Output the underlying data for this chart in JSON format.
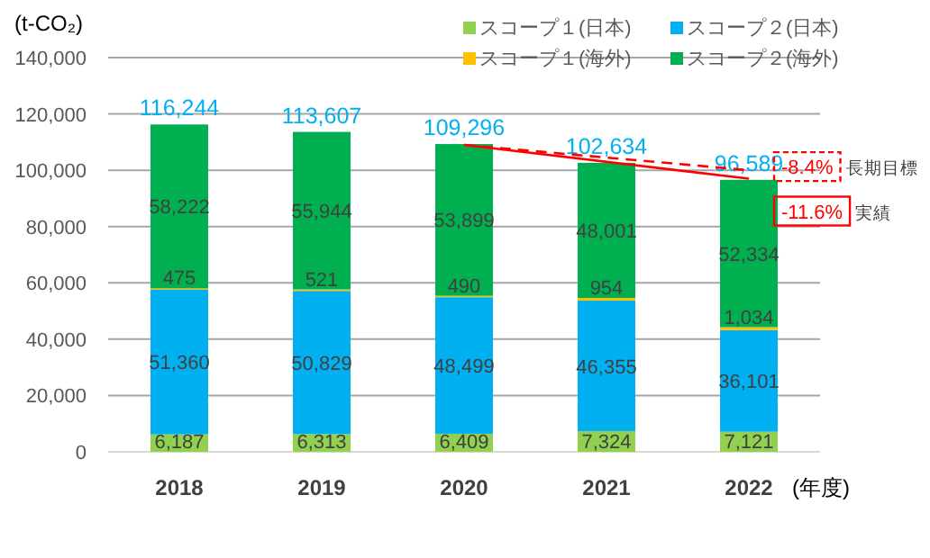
{
  "chart_data": {
    "type": "bar",
    "stacked": true,
    "ylabel": "(t-CO₂)",
    "xlabel": "(年度)",
    "categories": [
      "2018",
      "2019",
      "2020",
      "2021",
      "2022"
    ],
    "series": [
      {
        "name": "スコープ１(日本)",
        "color": "#92d050",
        "values": [
          6187,
          6313,
          6409,
          7324,
          7121
        ],
        "value_labels": [
          "6,187",
          "6,313",
          "6,409",
          "7,324",
          "7,121"
        ]
      },
      {
        "name": "スコープ２(日本)",
        "color": "#00b0f0",
        "values": [
          51360,
          50829,
          48499,
          46355,
          36101
        ],
        "value_labels": [
          "51,360",
          "50,829",
          "48,499",
          "46,355",
          "36,101"
        ]
      },
      {
        "name": "スコープ１(海外)",
        "color": "#ffc000",
        "values": [
          475,
          521,
          490,
          954,
          1034
        ],
        "value_labels": [
          "475",
          "521",
          "490",
          "954",
          "1,034"
        ]
      },
      {
        "name": "スコープ２(海外)",
        "color": "#00b050",
        "values": [
          58222,
          55944,
          53899,
          48001,
          52334
        ],
        "value_labels": [
          "58,222",
          "55,944",
          "53,899",
          "48,001",
          "52,334"
        ]
      },
      {
        "name": "長期目標",
        "type": "line",
        "line_style": "dashed",
        "color": "#ff0000",
        "values": [
          null,
          null,
          109000,
          null,
          100000
        ]
      },
      {
        "name": "実績",
        "type": "line",
        "line_style": "solid",
        "color": "#ff0000",
        "values": [
          null,
          null,
          109000,
          null,
          97000
        ]
      }
    ],
    "totals": [
      "116,244",
      "113,607",
      "109,296",
      "102,634",
      "96,589"
    ],
    "annotations": [
      "-8.4%",
      "-11.6%"
    ],
    "grid": "y",
    "legend": "top right",
    "ylim": [
      0,
      140000
    ],
    "yticks": [
      0,
      {
        "value": 20000,
        "label": "20,000"
      },
      {
        "value": 40000,
        "label": "40,000"
      },
      {
        "value": 60000,
        "label": "60,000"
      },
      {
        "value": 80000,
        "label": "80,000"
      },
      {
        "value": 100000,
        "label": "100,000"
      },
      {
        "value": 120000,
        "label": "120,000"
      },
      {
        "value": 140000,
        "label": "140,000"
      }
    ]
  }
}
